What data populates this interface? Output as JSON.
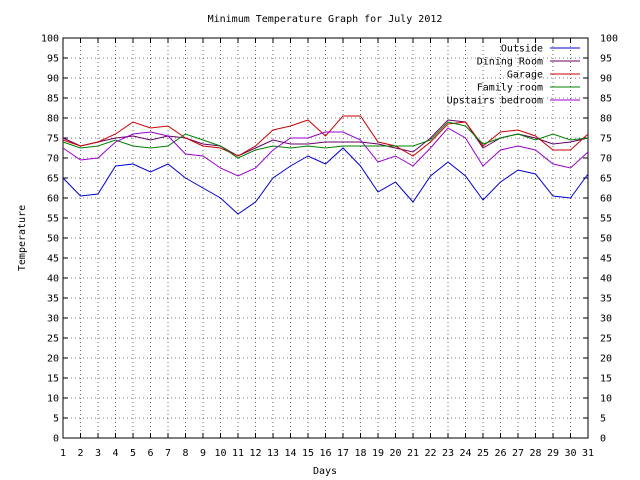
{
  "chart_data": {
    "type": "line",
    "title": "Minimum Temperature Graph for July 2012",
    "xlabel": "Days",
    "ylabel": "Temperature",
    "x": [
      1,
      2,
      3,
      4,
      5,
      6,
      7,
      8,
      9,
      10,
      11,
      12,
      13,
      14,
      15,
      16,
      17,
      18,
      19,
      20,
      21,
      22,
      23,
      24,
      25,
      26,
      27,
      28,
      29,
      30,
      31
    ],
    "xlim": [
      1,
      31
    ],
    "ylim": [
      0,
      100
    ],
    "y_ticks": [
      0,
      5,
      10,
      15,
      20,
      25,
      30,
      35,
      40,
      45,
      50,
      55,
      60,
      65,
      70,
      75,
      80,
      85,
      90,
      95,
      100
    ],
    "grid": true,
    "legend_position": "top-right",
    "series": [
      {
        "name": "Outside",
        "color": "#0000cc",
        "values": [
          65,
          60.5,
          61,
          68,
          68.5,
          66.5,
          68.5,
          65,
          62.5,
          60,
          56,
          59,
          65,
          68,
          70.5,
          68.5,
          72.5,
          68,
          61.5,
          64,
          59,
          65.5,
          69,
          65.5,
          59.5,
          64,
          67,
          66,
          60.5,
          60,
          66
        ]
      },
      {
        "name": "Dining Room",
        "color": "#660066",
        "values": [
          75,
          73,
          74,
          75,
          75.5,
          74.5,
          75.5,
          75,
          73.5,
          73,
          70.5,
          72.5,
          74.5,
          73.5,
          73.5,
          74,
          74,
          74,
          73.5,
          72.5,
          71.5,
          75,
          79.5,
          79,
          72.5,
          75,
          76,
          75,
          73.5,
          74,
          75
        ]
      },
      {
        "name": "Garage",
        "color": "#cc0000",
        "values": [
          74.5,
          73,
          74,
          76,
          79,
          77.5,
          78,
          75,
          73,
          72.5,
          70.5,
          73,
          77,
          78,
          79.5,
          75.5,
          80.5,
          80.5,
          74,
          73,
          70.5,
          74,
          78.5,
          79,
          73,
          76.5,
          77,
          75.5,
          72,
          72,
          76
        ]
      },
      {
        "name": "Family room",
        "color": "#008000",
        "values": [
          74,
          72.5,
          73,
          74.5,
          73,
          72.5,
          73,
          76,
          74.5,
          73,
          70,
          72,
          73,
          72.5,
          73,
          72.5,
          73,
          73,
          73,
          73,
          73,
          74.5,
          79,
          78,
          73.5,
          75,
          76,
          74.5,
          76,
          74.5,
          75
        ]
      },
      {
        "name": "Upstairs bedroom",
        "color": "#9900cc",
        "values": [
          72.5,
          69.5,
          70,
          74,
          76,
          76.5,
          75.5,
          71,
          70.5,
          67.5,
          65.5,
          67.5,
          72,
          75,
          75,
          76.5,
          76.5,
          74.5,
          69,
          70.5,
          68,
          72.5,
          77.5,
          75,
          68,
          72,
          73,
          72,
          68.5,
          67.5,
          71.5
        ]
      }
    ]
  }
}
